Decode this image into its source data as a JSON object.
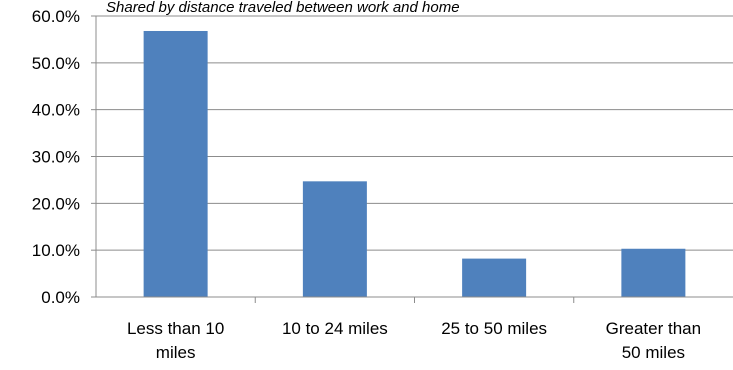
{
  "chart_data": {
    "type": "bar",
    "title": "",
    "subtitle": "Shared by distance traveled between work and home",
    "xlabel": "",
    "ylabel": "",
    "categories": [
      [
        "Less than 10",
        "miles"
      ],
      [
        "10 to 24 miles"
      ],
      [
        "25 to 50 miles"
      ],
      [
        "Greater than",
        "50 miles"
      ]
    ],
    "values": [
      56.8,
      24.7,
      8.2,
      10.3
    ],
    "ylim": [
      0,
      60
    ],
    "yticks": [
      0,
      10,
      20,
      30,
      40,
      50,
      60
    ],
    "ytick_labels": [
      "0.0%",
      "10.0%",
      "20.0%",
      "30.0%",
      "40.0%",
      "50.0%",
      "60.0%"
    ],
    "grid": true,
    "legend": "none",
    "bar_color": "#4f81bd"
  }
}
